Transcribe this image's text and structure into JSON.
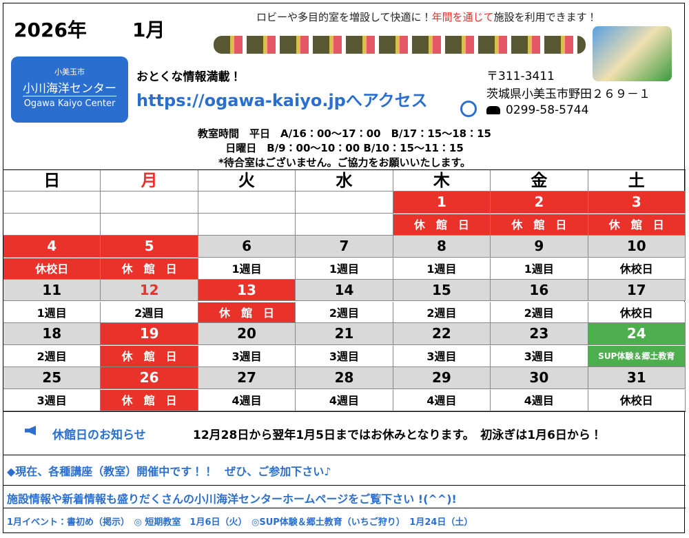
{
  "header": {
    "year": "2026年",
    "month": "1月",
    "tagline": [
      "ロビーや多目的室を増設して快適に！",
      "年間を通じて",
      "施設を利用できます！"
    ],
    "logo": [
      "小美玉市",
      "小川海洋センター",
      "Ogawa Kaiyo Center"
    ],
    "info": "おとくな情報満載！",
    "url": "https://ogawa-kaiyo.jpへアクセス",
    "postal": "〒311-3411",
    "address": "茨城県小美玉市野田２６９－１",
    "phone": "0299-58-5744",
    "hours": [
      "教室時間　平日　A/16：00～17：00　B/17：15～18：15",
      "日曜日　B/9：00～10：00 B/10：15～11：15",
      "*待合室はございません。ご協力をお願いいたします。"
    ]
  },
  "calendar": {
    "weekdays": [
      {
        "label": "日",
        "color": "#000"
      },
      {
        "label": "月",
        "color": "#e8322a"
      },
      {
        "label": "火",
        "color": "#000"
      },
      {
        "label": "水",
        "color": "#000"
      },
      {
        "label": "木",
        "color": "#000"
      },
      {
        "label": "金",
        "color": "#000"
      },
      {
        "label": "土",
        "color": "#000"
      }
    ],
    "weeks": [
      [
        null,
        null,
        null,
        null,
        {
          "date": "1",
          "note": "休　館　日",
          "style": "closed"
        },
        {
          "date": "2",
          "note": "休　館　日",
          "style": "closed"
        },
        {
          "date": "3",
          "note": "休　館　日",
          "style": "closed"
        }
      ],
      [
        {
          "date": "4",
          "note": "休校日",
          "style": "closed"
        },
        {
          "date": "5",
          "note": "休　館　日",
          "style": "closed"
        },
        {
          "date": "6",
          "note": "1週目",
          "style": "normal"
        },
        {
          "date": "7",
          "note": "1週目",
          "style": "normal"
        },
        {
          "date": "8",
          "note": "1週目",
          "style": "normal"
        },
        {
          "date": "9",
          "note": "1週目",
          "style": "normal"
        },
        {
          "date": "10",
          "note": "休校日",
          "style": "normal"
        }
      ],
      [
        {
          "date": "11",
          "note": "1週目",
          "style": "normal"
        },
        {
          "date": "12",
          "note": "2週目",
          "style": "holiday"
        },
        {
          "date": "13",
          "note": "休　館　日",
          "style": "closed"
        },
        {
          "date": "14",
          "note": "2週目",
          "style": "normal"
        },
        {
          "date": "15",
          "note": "2週目",
          "style": "normal"
        },
        {
          "date": "16",
          "note": "2週目",
          "style": "normal"
        },
        {
          "date": "17",
          "note": "休校日",
          "style": "normal"
        }
      ],
      [
        {
          "date": "18",
          "note": "2週目",
          "style": "normal"
        },
        {
          "date": "19",
          "note": "休　館　日",
          "style": "closed"
        },
        {
          "date": "20",
          "note": "3週目",
          "style": "normal"
        },
        {
          "date": "21",
          "note": "3週目",
          "style": "normal"
        },
        {
          "date": "22",
          "note": "3週目",
          "style": "normal"
        },
        {
          "date": "23",
          "note": "3週目",
          "style": "normal"
        },
        {
          "date": "24",
          "note": "SUP体験＆郷土教育",
          "style": "event"
        }
      ],
      [
        {
          "date": "25",
          "note": "3週目",
          "style": "normal"
        },
        {
          "date": "26",
          "note": "休　館　日",
          "style": "closed"
        },
        {
          "date": "27",
          "note": "4週目",
          "style": "normal"
        },
        {
          "date": "28",
          "note": "4週目",
          "style": "normal"
        },
        {
          "date": "29",
          "note": "4週目",
          "style": "normal"
        },
        {
          "date": "30",
          "note": "4週目",
          "style": "normal"
        },
        {
          "date": "31",
          "note": "休校日",
          "style": "normal"
        }
      ]
    ]
  },
  "footer": {
    "notice_label": "休館日のお知らせ",
    "notice": "12月28日から翌年1月5日まではお休みとなります。　初泳ぎは1月6日から！",
    "line1": "◆現在、各種講座（教室）開催中です！！　ぜひ、ご参加下さい♪",
    "line2": "施設情報や新着情報も盛りだくさんの小川海洋センターホームページをご覧下さい !(^^)!",
    "line3": "1月イベント：書初め（掲示）　◎ 短期教室　1月6日（火）　◎SUP体験＆郷土教育（いちご狩り）　1月24日（土）"
  }
}
